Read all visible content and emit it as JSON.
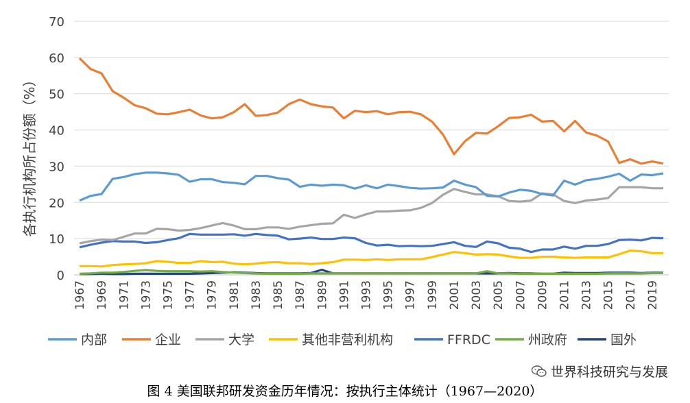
{
  "chart_data": {
    "type": "line",
    "title": "",
    "xlabel": "",
    "ylabel": "各执行机构所占份额（%）",
    "ylim": [
      0,
      70
    ],
    "yticks": [
      0,
      10,
      20,
      30,
      40,
      50,
      60,
      70
    ],
    "grid": true,
    "legend_position": "bottom",
    "x": [
      1967,
      1968,
      1969,
      1970,
      1971,
      1972,
      1973,
      1974,
      1975,
      1976,
      1977,
      1978,
      1979,
      1980,
      1981,
      1982,
      1983,
      1984,
      1985,
      1986,
      1987,
      1988,
      1989,
      1990,
      1991,
      1992,
      1993,
      1994,
      1995,
      1996,
      1997,
      1998,
      1999,
      2000,
      2001,
      2002,
      2003,
      2004,
      2005,
      2006,
      2007,
      2008,
      2009,
      2010,
      2011,
      2012,
      2013,
      2014,
      2015,
      2016,
      2017,
      2018,
      2019,
      2020
    ],
    "xtick_labels": [
      "1967",
      "1969",
      "1971",
      "1973",
      "1975",
      "1977",
      "1979",
      "1981",
      "1983",
      "1985",
      "1987",
      "1989",
      "1991",
      "1993",
      "1995",
      "1997",
      "1999",
      "2001",
      "2003",
      "2005",
      "2007",
      "2009",
      "2011",
      "2013",
      "2015",
      "2017",
      "2019"
    ],
    "series": [
      {
        "name": "内部",
        "color": "#5B9BD5",
        "values": [
          20.5,
          21.8,
          22.3,
          26.5,
          27.0,
          27.8,
          28.2,
          28.2,
          28.0,
          27.6,
          25.7,
          26.4,
          26.4,
          25.6,
          25.4,
          25.0,
          27.3,
          27.3,
          26.7,
          26.3,
          24.3,
          24.9,
          24.6,
          24.9,
          24.7,
          23.8,
          24.7,
          23.9,
          24.9,
          24.5,
          24.0,
          23.8,
          23.9,
          24.1,
          26.0,
          24.9,
          24.2,
          21.8,
          21.6,
          22.7,
          23.5,
          23.2,
          22.3,
          21.9,
          26.0,
          24.9,
          26.1,
          26.5,
          27.1,
          27.9,
          26.0,
          27.7,
          27.5,
          28.0
        ]
      },
      {
        "name": "企业",
        "color": "#ED7D31",
        "values": [
          59.8,
          56.8,
          55.6,
          50.7,
          48.9,
          46.8,
          46.0,
          44.5,
          44.3,
          44.9,
          45.6,
          44.0,
          43.2,
          43.5,
          44.9,
          47.1,
          43.9,
          44.1,
          44.8,
          47.1,
          48.4,
          47.1,
          46.5,
          46.2,
          43.2,
          45.3,
          44.9,
          45.2,
          44.3,
          44.9,
          45.0,
          44.3,
          42.3,
          38.7,
          33.3,
          36.9,
          39.2,
          39.0,
          41.0,
          43.3,
          43.5,
          44.2,
          42.3,
          42.5,
          39.6,
          42.5,
          39.3,
          38.4,
          36.8,
          30.9,
          31.9,
          30.7,
          31.3,
          30.7
        ]
      },
      {
        "name": "大学",
        "color": "#A5A5A5",
        "values": [
          8.7,
          9.3,
          9.7,
          9.6,
          10.5,
          11.4,
          11.4,
          12.7,
          12.6,
          12.2,
          12.4,
          12.9,
          13.6,
          14.3,
          13.6,
          12.6,
          12.6,
          13.1,
          13.1,
          12.7,
          13.3,
          13.7,
          14.1,
          14.2,
          16.6,
          15.7,
          16.7,
          17.5,
          17.5,
          17.7,
          17.8,
          18.5,
          19.8,
          22.1,
          23.7,
          22.9,
          22.2,
          22.2,
          21.7,
          20.4,
          20.2,
          20.5,
          22.5,
          22.2,
          20.4,
          19.8,
          20.5,
          20.8,
          21.2,
          24.2,
          24.2,
          24.2,
          23.9,
          23.9
        ]
      },
      {
        "name": "其他非营利机构",
        "color": "#FFC000",
        "values": [
          2.4,
          2.4,
          2.3,
          2.7,
          2.9,
          3.0,
          3.2,
          3.8,
          3.6,
          3.3,
          3.3,
          3.8,
          3.5,
          3.6,
          3.1,
          2.9,
          3.1,
          3.4,
          3.5,
          3.2,
          3.2,
          3.0,
          3.2,
          3.5,
          4.2,
          4.2,
          4.1,
          4.3,
          4.1,
          4.3,
          4.3,
          4.3,
          4.9,
          5.6,
          6.3,
          6.0,
          5.6,
          5.7,
          5.6,
          5.1,
          4.7,
          4.7,
          5.0,
          5.0,
          4.8,
          4.7,
          4.8,
          4.8,
          4.8,
          5.7,
          6.7,
          6.5,
          6.0,
          6.0
        ]
      },
      {
        "name": "FFRDC",
        "color": "#4472C4",
        "values": [
          7.6,
          8.3,
          8.9,
          9.3,
          9.2,
          9.2,
          8.8,
          9.0,
          9.6,
          10.1,
          11.3,
          11.1,
          11.1,
          11.1,
          11.2,
          10.8,
          11.3,
          11.0,
          10.8,
          9.8,
          10.0,
          10.3,
          9.9,
          9.9,
          10.3,
          10.1,
          8.8,
          8.1,
          8.3,
          7.9,
          8.0,
          7.9,
          8.0,
          8.5,
          9.0,
          8.0,
          7.7,
          9.2,
          8.7,
          7.5,
          7.2,
          6.3,
          7.0,
          7.0,
          7.8,
          7.2,
          8.0,
          8.0,
          8.5,
          9.6,
          9.7,
          9.5,
          10.2,
          10.1
        ]
      },
      {
        "name": "州政府",
        "color": "#70AD47",
        "values": [
          0.3,
          0.4,
          0.6,
          0.6,
          0.8,
          1.1,
          1.3,
          1.1,
          1.0,
          1.0,
          1.0,
          0.9,
          1.0,
          0.8,
          0.6,
          0.5,
          0.4,
          0.3,
          0.3,
          0.3,
          0.3,
          0.4,
          0.4,
          0.4,
          0.4,
          0.4,
          0.4,
          0.4,
          0.4,
          0.4,
          0.4,
          0.4,
          0.4,
          0.4,
          0.4,
          0.4,
          0.4,
          1.0,
          0.4,
          0.4,
          0.3,
          0.3,
          0.3,
          0.3,
          0.3,
          0.3,
          0.3,
          0.3,
          0.4,
          0.4,
          0.4,
          0.4,
          0.5,
          0.5
        ]
      },
      {
        "name": "国外",
        "color": "#264478",
        "values": [
          0.2,
          0.2,
          0.3,
          0.2,
          0.2,
          0.3,
          0.3,
          0.3,
          0.3,
          0.3,
          0.3,
          0.4,
          0.5,
          0.6,
          0.7,
          0.6,
          0.5,
          0.4,
          0.4,
          0.4,
          0.4,
          0.5,
          1.4,
          0.4,
          0.4,
          0.4,
          0.4,
          0.4,
          0.4,
          0.4,
          0.4,
          0.4,
          0.4,
          0.4,
          0.4,
          0.4,
          0.4,
          0.4,
          0.4,
          0.5,
          0.4,
          0.4,
          0.3,
          0.3,
          0.6,
          0.5,
          0.5,
          0.5,
          0.6,
          0.6,
          0.6,
          0.5,
          0.6,
          0.6
        ]
      }
    ]
  },
  "watermark": "世界科技研究与发展",
  "caption": "图 4  美国联邦研发资金历年情况：按执行主体统计（1967—2020）"
}
